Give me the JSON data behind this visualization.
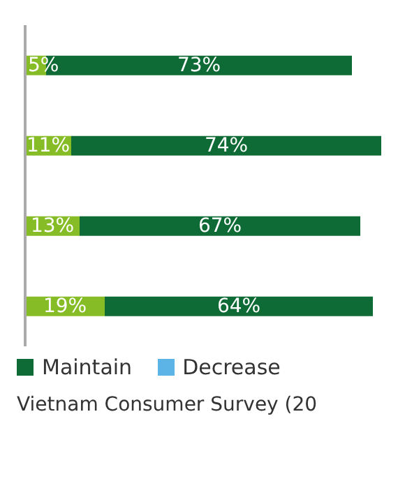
{
  "chart_data": {
    "type": "bar",
    "orientation": "horizontal",
    "stacked": true,
    "categories": [
      null,
      null,
      null,
      null
    ],
    "series": [
      {
        "color": "#86bc25",
        "values": [
          5,
          11,
          13,
          19
        ],
        "value_labels": [
          "5%",
          "11%",
          "13%",
          "19%"
        ]
      },
      {
        "name": "Maintain",
        "color": "#0f6b35",
        "values": [
          73,
          74,
          67,
          64
        ],
        "value_labels": [
          "73%",
          "74%",
          "67%",
          "64%"
        ]
      },
      {
        "name": "Decrease",
        "color": "#5bb4e5",
        "values": [
          null,
          null,
          null,
          null
        ]
      }
    ],
    "legend": "bottom",
    "annotations": [
      "Vietnam Consumer Survey (20"
    ]
  }
}
